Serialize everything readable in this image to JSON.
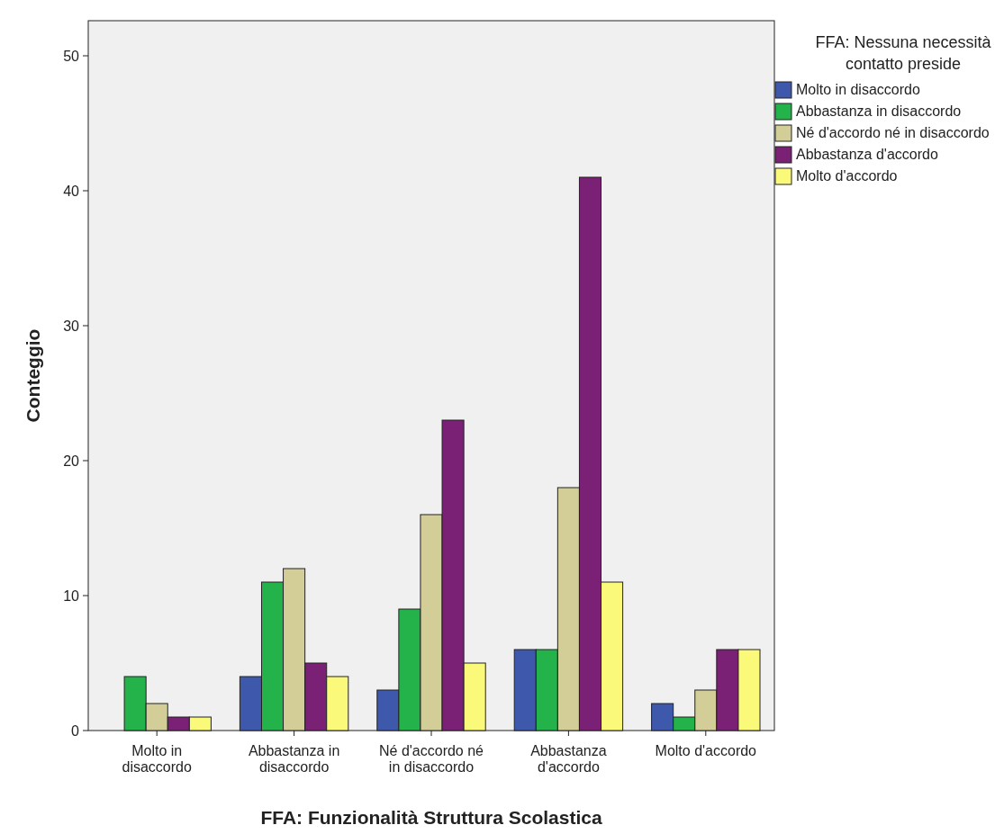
{
  "chart_data": {
    "type": "bar",
    "xlabel": "FFA: Funzionalità Struttura Scolastica",
    "ylabel": "Conteggio",
    "legend_title": "FFA: Nessuna necessità contatto preside",
    "categories": [
      "Molto in disaccordo",
      "Abbastanza in disaccordo",
      "Né d'accordo né in disaccordo",
      "Abbastanza d'accordo",
      "Molto d'accordo"
    ],
    "series": [
      {
        "name": "Molto in disaccordo",
        "color": "#3e58ac",
        "values": [
          0,
          4,
          3,
          6,
          2
        ]
      },
      {
        "name": "Abbastanza in disaccordo",
        "color": "#24b34a",
        "values": [
          4,
          11,
          9,
          6,
          1
        ]
      },
      {
        "name": "Né d'accordo né in disaccordo",
        "color": "#d3ce98",
        "values": [
          2,
          12,
          16,
          18,
          3
        ]
      },
      {
        "name": "Abbastanza d'accordo",
        "color": "#7a2176",
        "values": [
          1,
          5,
          23,
          41,
          6
        ]
      },
      {
        "name": "Molto d'accordo",
        "color": "#fbf97a",
        "values": [
          1,
          4,
          5,
          11,
          6
        ]
      }
    ],
    "ylim": [
      0,
      52.6
    ],
    "yticks": [
      0,
      10,
      20,
      30,
      40,
      50
    ],
    "grid": false,
    "legend": "right"
  }
}
